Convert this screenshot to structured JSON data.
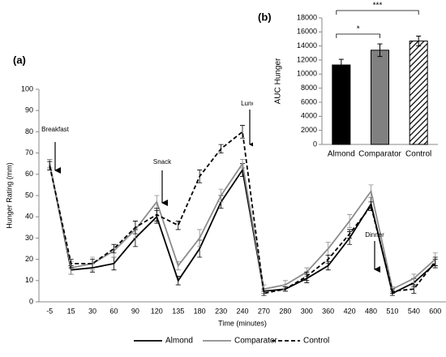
{
  "chart_data": [
    {
      "type": "line",
      "panel_label": "(a)",
      "y_label": "Hunger Rating (mm)",
      "x_label": "Time (minutes)",
      "categories": [
        "-5",
        "15",
        "30",
        "60",
        "90",
        "120",
        "135",
        "180",
        "230",
        "240",
        "270",
        "280",
        "300",
        "360",
        "420",
        "480",
        "510",
        "540",
        "600"
      ],
      "ylim": [
        0,
        100
      ],
      "yticks": [
        0,
        10,
        20,
        30,
        40,
        50,
        60,
        70,
        80,
        90,
        100
      ],
      "annotations": [
        "Breakfast",
        "Snack",
        "Lunch",
        "Dinner"
      ],
      "series": [
        {
          "name": "Almond",
          "color": "#000000",
          "line_style": "solid",
          "values": [
            65,
            15,
            16,
            18,
            30,
            40,
            10,
            25,
            47,
            62,
            5,
            6,
            11,
            17,
            30,
            46,
            4,
            9,
            18
          ],
          "errors": [
            2,
            2,
            2,
            3,
            4,
            3,
            2,
            4,
            3,
            3,
            1,
            1,
            2,
            2,
            3,
            3,
            1,
            2,
            2
          ]
        },
        {
          "name": "Comparator",
          "color": "#8c8c8c",
          "line_style": "solid",
          "values": [
            65,
            16,
            18,
            24,
            34,
            47,
            17,
            30,
            50,
            65,
            6,
            8,
            14,
            25,
            38,
            52,
            6,
            11,
            20
          ],
          "errors": [
            2,
            3,
            3,
            3,
            4,
            3,
            2,
            4,
            3,
            2,
            2,
            2,
            2,
            3,
            3,
            3,
            1,
            2,
            3
          ]
        },
        {
          "name": "Control",
          "color": "#000000",
          "line_style": "dashed",
          "values": [
            64,
            18,
            18,
            25,
            35,
            41,
            36,
            59,
            72,
            80,
            4,
            6,
            12,
            20,
            32,
            45,
            5,
            6,
            19
          ],
          "errors": [
            2,
            2,
            2,
            2,
            3,
            3,
            2,
            3,
            2,
            3,
            1,
            1,
            2,
            2,
            2,
            2,
            1,
            2,
            2
          ]
        }
      ]
    },
    {
      "type": "bar",
      "panel_label": "(b)",
      "y_label": "AUC Hunger",
      "categories": [
        "Almond",
        "Comparator",
        "Control"
      ],
      "values": [
        11300,
        13400,
        14700
      ],
      "errors": [
        800,
        900,
        700
      ],
      "colors": [
        "#000000",
        "#808080",
        "#ffffff"
      ],
      "hatch": [
        false,
        false,
        true
      ],
      "ylim": [
        0,
        18000
      ],
      "yticks": [
        0,
        2000,
        4000,
        6000,
        8000,
        10000,
        12000,
        14000,
        16000,
        18000
      ],
      "annotations": [
        "*",
        "***"
      ]
    }
  ]
}
